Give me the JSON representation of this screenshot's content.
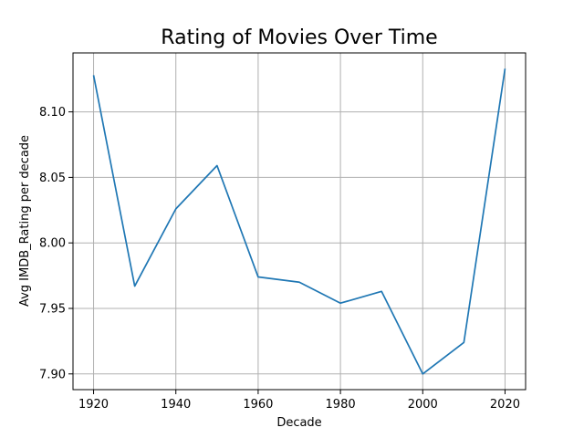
{
  "chart_data": {
    "type": "line",
    "title": "Rating of  Movies Over Time",
    "xlabel": "Decade",
    "ylabel": "Avg IMDB_Rating per decade",
    "x": [
      1920,
      1930,
      1940,
      1950,
      1960,
      1970,
      1980,
      1990,
      2000,
      2010,
      2020
    ],
    "series": [
      {
        "values": [
          8.128,
          7.967,
          8.026,
          8.059,
          7.974,
          7.97,
          7.954,
          7.963,
          7.9,
          7.924,
          8.133
        ],
        "color": "#1f77b4"
      }
    ],
    "xlim": [
      1915,
      2025
    ],
    "ylim": [
      7.888,
      8.145
    ],
    "xticks": [
      1920,
      1940,
      1960,
      1980,
      2000,
      2020
    ],
    "yticks": [
      7.9,
      7.95,
      8.0,
      8.05,
      8.1
    ],
    "ytick_labels": [
      "7.90",
      "7.95",
      "8.00",
      "8.05",
      "8.10"
    ],
    "grid": true
  }
}
